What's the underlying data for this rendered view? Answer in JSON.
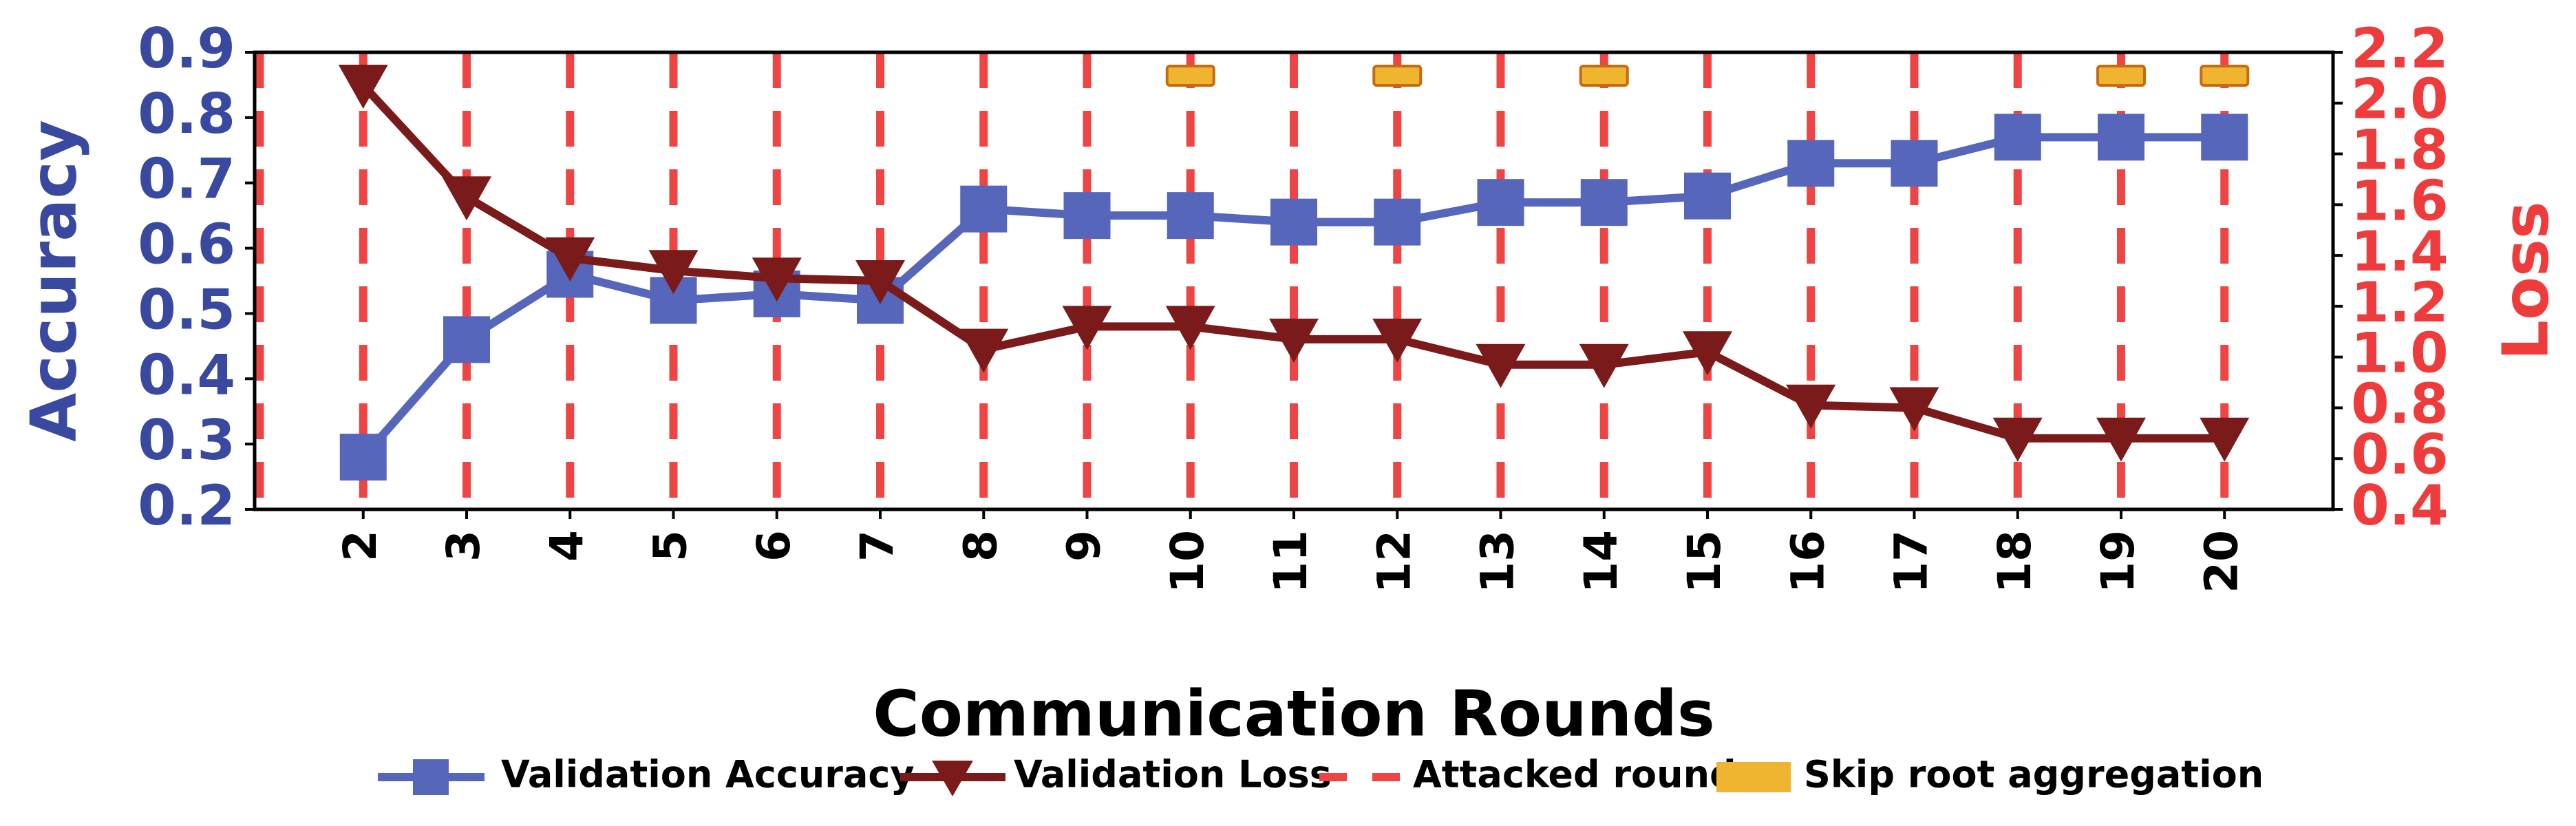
{
  "chart_data": {
    "type": "line",
    "xlabel": "Communication Rounds",
    "ylabel": "Accuracy",
    "y2label": "Loss",
    "x": [
      2,
      3,
      4,
      5,
      6,
      7,
      8,
      9,
      10,
      11,
      12,
      13,
      14,
      15,
      16,
      17,
      18,
      19,
      20
    ],
    "series": [
      {
        "name": "Validation Accuracy",
        "color": "#5566bb",
        "marker": "square",
        "values": [
          0.28,
          0.46,
          0.56,
          0.52,
          0.53,
          0.52,
          0.66,
          0.65,
          0.65,
          0.64,
          0.64,
          0.67,
          0.67,
          0.68,
          0.73,
          0.73,
          0.77,
          0.77,
          0.77
        ]
      },
      {
        "name": "Validation Loss",
        "color": "#7a1a1a",
        "marker": "triangle-down",
        "axis": "y2",
        "values": [
          2.07,
          1.63,
          1.39,
          1.34,
          1.31,
          1.3,
          1.03,
          1.12,
          1.12,
          1.07,
          1.07,
          0.97,
          0.97,
          1.02,
          0.81,
          0.8,
          0.68,
          0.68,
          0.68
        ]
      }
    ],
    "attacked_rounds": {
      "name": "Attacked round",
      "color": "#ee4444",
      "x": [
        1,
        2,
        3,
        4,
        5,
        6,
        7,
        8,
        9,
        10,
        11,
        12,
        13,
        14,
        15,
        16,
        17,
        18,
        19,
        20
      ]
    },
    "skip_root_aggregation": {
      "name": "Skip root aggregation",
      "color": "#f0b530",
      "x": [
        10,
        12,
        14,
        19,
        20
      ]
    },
    "xlim": [
      0.95,
      21.05
    ],
    "xticks": [
      2,
      3,
      4,
      5,
      6,
      7,
      8,
      9,
      10,
      11,
      12,
      13,
      14,
      15,
      16,
      17,
      18,
      19,
      20
    ],
    "ylim": [
      0.2,
      0.9
    ],
    "yticks": [
      0.2,
      0.3,
      0.4,
      0.5,
      0.6,
      0.7,
      0.8,
      0.9
    ],
    "y2lim": [
      0.4,
      2.2
    ],
    "y2ticks": [
      0.4,
      0.6,
      0.8,
      {
        "value": 1,
        "label": "1.0"
      },
      1.2,
      1.4,
      1.6,
      1.8,
      {
        "value": 2,
        "label": "2.0"
      },
      2.2
    ],
    "ylabel_color": "#3a49a0",
    "y2label_color": "#ee3b3b"
  }
}
